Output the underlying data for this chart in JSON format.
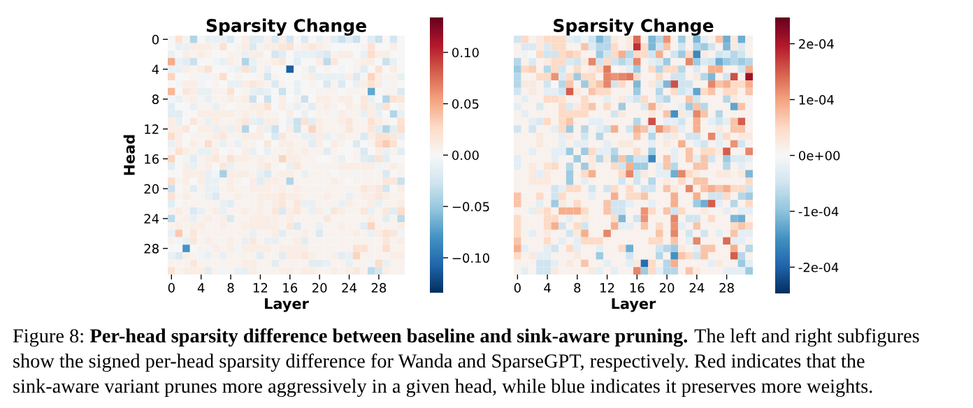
{
  "chart_data": [
    {
      "type": "heatmap",
      "title": "Sparsity Change",
      "xlabel": "Layer",
      "ylabel": "Head",
      "categories": [
        "0",
        null,
        null,
        null,
        "4",
        null,
        null,
        null,
        "8",
        null,
        null,
        null,
        "12",
        null,
        null,
        null,
        "16",
        null,
        null,
        null,
        "20",
        null,
        null,
        null,
        "24",
        null,
        null,
        null,
        "28",
        null,
        null,
        null
      ],
      "y_categories": [
        "0",
        null,
        null,
        null,
        "4",
        null,
        null,
        null,
        "8",
        null,
        null,
        null,
        "12",
        null,
        null,
        null,
        "16",
        null,
        null,
        null,
        "20",
        null,
        null,
        null,
        "24",
        null,
        null,
        null,
        "28",
        null,
        null,
        null
      ],
      "clim": [
        -0.134,
        0.134
      ],
      "cticks": [
        {
          "value": -0.1,
          "label": "−0.10"
        },
        {
          "value": -0.05,
          "label": "−0.05"
        },
        {
          "value": 0,
          "label": "0.00"
        },
        {
          "value": 0.05,
          "label": "0.05"
        },
        {
          "value": 0.1,
          "label": "0.10"
        }
      ],
      "cells": [
        [
          0,
          0.02,
          0.005,
          -0.04,
          0,
          -0.01,
          -0.01,
          -0.01,
          -0.02,
          0,
          0.01,
          -0.015,
          -0.015,
          0.005,
          -0.02,
          0.01,
          -0.025,
          0,
          -0.02,
          0,
          -0.01,
          0.005,
          -0.015,
          -0.03,
          -0.015,
          -0.03,
          0,
          -0.015,
          -0.03,
          0,
          -0.025,
          0
        ],
        [
          0,
          -0.01,
          -0.01,
          0.01,
          0.01,
          0.01,
          0.005,
          0.02,
          0,
          0.005,
          0.01,
          -0.02,
          0.005,
          0.01,
          0.01,
          0.015,
          0.02,
          0.005,
          0.01,
          0.015,
          0.01,
          0.005,
          0,
          0,
          0,
          0,
          0.005,
          0.02,
          0,
          0,
          0.01,
          0
        ],
        [
          -0.01,
          0,
          0.01,
          0.005,
          0.01,
          0.005,
          0,
          0,
          0.005,
          0.005,
          -0.01,
          0.01,
          0.01,
          0,
          -0.025,
          -0.015,
          0,
          -0.01,
          -0.01,
          -0.01,
          -0.015,
          -0.02,
          0.005,
          0.01,
          0.01,
          0,
          -0.01,
          0.025,
          0.01,
          0.01,
          0,
          0
        ],
        [
          0.05,
          -0.01,
          -0.015,
          -0.03,
          0,
          0,
          -0.005,
          -0.01,
          0.01,
          0.005,
          -0.04,
          -0.01,
          0.005,
          0.005,
          0.01,
          0.015,
          0,
          -0.015,
          0,
          0,
          0.01,
          -0.035,
          0.015,
          0,
          0,
          0.005,
          0.01,
          0.01,
          0,
          -0.03,
          -0.01,
          0
        ],
        [
          -0.01,
          -0.01,
          0.01,
          0.005,
          0.01,
          0.02,
          0,
          0,
          -0.005,
          -0.01,
          0.02,
          -0.015,
          0.005,
          -0.01,
          0,
          0,
          -0.11,
          0,
          0.005,
          -0.015,
          0,
          0.005,
          0,
          -0.005,
          0,
          0.005,
          -0.015,
          0,
          0.02,
          0,
          0.01,
          0
        ],
        [
          0.03,
          0,
          0,
          0.005,
          -0.005,
          -0.005,
          0.005,
          0.025,
          0,
          0.005,
          0,
          0,
          0.005,
          -0.025,
          0.005,
          0,
          0,
          0,
          0.005,
          0.01,
          -0.01,
          -0.01,
          -0.01,
          -0.01,
          0.01,
          -0.02,
          0.005,
          0.03,
          0.01,
          0.005,
          0.005,
          -0.01
        ],
        [
          0,
          -0.005,
          0.01,
          0.01,
          -0.005,
          0,
          0.005,
          0,
          -0.01,
          -0.01,
          0.01,
          0.015,
          0.01,
          0.005,
          -0.02,
          0.005,
          0,
          -0.01,
          0,
          0.005,
          0,
          -0.02,
          0.005,
          -0.02,
          0,
          -0.01,
          0.01,
          0.02,
          0.01,
          -0.005,
          0.005,
          0
        ],
        [
          0.045,
          0,
          0.015,
          0.01,
          -0.01,
          -0.01,
          0.005,
          0.005,
          0.02,
          0,
          0.005,
          -0.01,
          -0.015,
          -0.01,
          0,
          -0.03,
          0,
          -0.01,
          0,
          0,
          0.005,
          0.005,
          0.005,
          0,
          0.005,
          0.005,
          0.005,
          -0.07,
          0,
          0.005,
          0.005,
          -0.02
        ],
        [
          -0.005,
          -0.01,
          0.005,
          0.01,
          -0.005,
          -0.01,
          0.005,
          0.005,
          0.01,
          0.005,
          0.01,
          -0.03,
          0,
          -0.03,
          0,
          0.01,
          0,
          0.005,
          -0.03,
          0,
          0.01,
          0.01,
          0.005,
          0.01,
          0.01,
          0,
          0.015,
          -0.01,
          0,
          -0.04,
          0.02,
          0.015
        ],
        [
          -0.015,
          0,
          0,
          -0.01,
          0.005,
          0.005,
          -0.01,
          0.005,
          0,
          0.005,
          0.005,
          0.01,
          0.01,
          0.02,
          0,
          0.01,
          -0.005,
          -0.01,
          0.005,
          -0.015,
          0.005,
          0.01,
          0.005,
          0,
          0.01,
          0.005,
          0.015,
          0.01,
          -0.015,
          0.02,
          0,
          0.005
        ],
        [
          -0.015,
          -0.015,
          0,
          0,
          0.01,
          0.01,
          0.01,
          0.01,
          0.01,
          0.005,
          0.01,
          0.005,
          0.01,
          0.005,
          0.005,
          0,
          0.01,
          0,
          -0.01,
          0,
          0.005,
          0.005,
          -0.005,
          0.01,
          0.005,
          0.005,
          -0.01,
          0.01,
          -0.01,
          0,
          -0.04,
          -0.01
        ],
        [
          0.01,
          -0.01,
          0,
          0.015,
          0.005,
          -0.01,
          0.01,
          0.005,
          0.005,
          0.01,
          0.015,
          -0.01,
          -0.015,
          0.01,
          0.01,
          0,
          -0.01,
          -0.03,
          0.02,
          -0.015,
          0.01,
          0.005,
          0.005,
          0.01,
          0.015,
          0.005,
          0.005,
          0.02,
          0.01,
          0.005,
          0,
          0.02
        ],
        [
          0.01,
          0.01,
          0.015,
          0,
          0.01,
          0.01,
          -0.01,
          0.01,
          -0.01,
          0.01,
          -0.04,
          0,
          0.01,
          -0.01,
          -0.03,
          0,
          0.01,
          -0.03,
          0.005,
          0.03,
          0.01,
          0.005,
          0.005,
          0.005,
          0.015,
          0.005,
          0.005,
          0.015,
          -0.015,
          -0.04,
          -0.015,
          0.025
        ],
        [
          0.025,
          0.01,
          0,
          0.005,
          0.005,
          0.005,
          0.01,
          0.015,
          0.005,
          0.005,
          0.01,
          0.01,
          0.01,
          0,
          -0.02,
          0.015,
          0.005,
          0.005,
          -0.01,
          -0.01,
          0.01,
          -0.01,
          -0.005,
          0.01,
          0.005,
          0.005,
          -0.02,
          0.01,
          0.02,
          0.02,
          0.015,
          -0.01
        ],
        [
          -0.01,
          0.01,
          0,
          0.01,
          0.005,
          0.025,
          0.005,
          -0.01,
          0.005,
          -0.01,
          0.005,
          0.005,
          0,
          0.015,
          0,
          0.01,
          0.01,
          0.005,
          0.005,
          -0.015,
          0.01,
          0,
          0.01,
          0.005,
          0,
          -0.02,
          0,
          0.005,
          0.025,
          0.035,
          0.02,
          0
        ],
        [
          0.005,
          0.02,
          0.01,
          0.005,
          -0.01,
          -0.01,
          0.01,
          0,
          0.005,
          0,
          0.01,
          -0.01,
          0,
          -0.01,
          0.005,
          0.005,
          0.01,
          0.005,
          0.01,
          0.005,
          0.005,
          -0.015,
          0.005,
          0,
          0,
          0.005,
          -0.02,
          0,
          0.01,
          -0.01,
          0.005,
          -0.015
        ],
        [
          0.03,
          0,
          -0.005,
          -0.015,
          0.005,
          0.01,
          0.015,
          0.005,
          0.02,
          0.01,
          0.01,
          0.005,
          0.01,
          0.005,
          0.005,
          0.03,
          0.01,
          0.01,
          0.005,
          0.005,
          0,
          0,
          0.005,
          -0.01,
          0,
          0.005,
          -0.015,
          -0.02,
          0.02,
          -0.015,
          0,
          0
        ],
        [
          -0.015,
          0,
          0.01,
          -0.01,
          0.005,
          0.01,
          0,
          0.015,
          -0.01,
          0.005,
          0.005,
          0.005,
          0.01,
          0.015,
          0.005,
          0,
          -0.01,
          0.015,
          0.005,
          0.005,
          0.005,
          0.005,
          0.005,
          0.01,
          0.01,
          0.01,
          0.01,
          0.01,
          -0.005,
          0.005,
          0.01,
          0.005
        ],
        [
          0,
          0,
          0.01,
          0.01,
          0.01,
          -0.01,
          -0.005,
          -0.045,
          0.01,
          0.01,
          0.01,
          0.005,
          -0.01,
          -0.02,
          0.005,
          0.01,
          0.01,
          0.005,
          -0.01,
          0.005,
          0.005,
          0.005,
          0,
          0.005,
          0.005,
          -0.005,
          0.005,
          0.005,
          0.005,
          -0.02,
          0,
          0.005
        ],
        [
          0.025,
          0.005,
          0.01,
          0,
          0.01,
          -0.01,
          -0.01,
          0.005,
          0.01,
          0.005,
          0,
          0.01,
          -0.015,
          0.01,
          0.01,
          0.005,
          -0.04,
          0.005,
          0.005,
          0.005,
          0.005,
          0.005,
          0.01,
          0.005,
          0,
          0.005,
          0.005,
          0.005,
          0.005,
          0.015,
          0.015,
          -0.03
        ],
        [
          -0.03,
          0,
          0.005,
          -0.015,
          0.005,
          -0.01,
          -0.01,
          0.005,
          0.01,
          0.005,
          0.005,
          0.01,
          0.01,
          0.01,
          0.005,
          0.01,
          0.005,
          0.01,
          0.005,
          0.005,
          0.005,
          0.005,
          0.005,
          0.005,
          0.005,
          0.005,
          0.015,
          0.01,
          0.015,
          -0.025,
          0,
          0.01
        ],
        [
          0.02,
          0.005,
          0.01,
          0.005,
          0.005,
          -0.01,
          -0.02,
          0.005,
          0.005,
          0.01,
          0.005,
          0.005,
          0.01,
          0.01,
          0.01,
          0.015,
          0.01,
          0.01,
          0.005,
          0.005,
          0.005,
          0.01,
          0.005,
          0.005,
          -0.01,
          0.005,
          0.01,
          0.01,
          0.015,
          0.01,
          0.005,
          0.005
        ],
        [
          -0.015,
          0,
          0.005,
          0.005,
          0.005,
          0.005,
          0.005,
          -0.01,
          -0.015,
          0.005,
          0.005,
          0.005,
          0.01,
          0.005,
          0.01,
          0.015,
          0.005,
          0.015,
          -0.01,
          -0.01,
          0.005,
          0.005,
          0.005,
          -0.01,
          0.01,
          0.005,
          0.005,
          0.01,
          -0.01,
          0.005,
          0.005,
          0.01
        ],
        [
          0.005,
          0.01,
          0.005,
          -0.02,
          -0.01,
          0.005,
          0.01,
          -0.01,
          0.005,
          0.005,
          0.01,
          0.005,
          0.01,
          0.005,
          0.015,
          -0.02,
          0.01,
          0.015,
          0.005,
          -0.01,
          0.01,
          -0.005,
          0.015,
          0.01,
          0.005,
          0.005,
          0.015,
          -0.01,
          0.005,
          0.015,
          -0.015,
          0.025
        ],
        [
          -0.035,
          0.005,
          0.01,
          -0.01,
          0.005,
          0.01,
          0.005,
          0.01,
          -0.02,
          0.005,
          0.005,
          0.01,
          0.01,
          0.01,
          0.01,
          0.005,
          0.01,
          0.005,
          0.005,
          0.005,
          0.005,
          0.015,
          0.005,
          0.005,
          0.005,
          0.005,
          0.005,
          0.01,
          0.005,
          -0.015,
          0.005,
          -0.035
        ],
        [
          0.005,
          0.01,
          0.005,
          0.01,
          0.01,
          0.005,
          0.005,
          0.01,
          0.005,
          0.005,
          0.01,
          0.01,
          0.01,
          0.01,
          0.01,
          0.005,
          0.015,
          -0.02,
          0.005,
          0.005,
          -0.01,
          0.005,
          0.005,
          0.01,
          0.005,
          0.005,
          -0.015,
          0.03,
          0.005,
          0.005,
          0.005,
          0.01
        ],
        [
          -0.01,
          0.035,
          0.005,
          0.015,
          0.005,
          0.005,
          0.005,
          0.005,
          0.005,
          0.005,
          0.005,
          -0.01,
          0.005,
          0.005,
          0.01,
          -0.015,
          0.005,
          0.005,
          0.01,
          0.005,
          -0.02,
          0.005,
          0.005,
          0.005,
          0.005,
          0.01,
          0.005,
          -0.01,
          0.01,
          0.02,
          0.015,
          -0.005
        ],
        [
          0.005,
          -0.005,
          -0.01,
          0.015,
          0.005,
          0.01,
          0.005,
          0.005,
          0.01,
          0.005,
          -0.01,
          0.015,
          0.005,
          -0.01,
          -0.01,
          0.005,
          0.005,
          0.01,
          -0.015,
          0.005,
          0.005,
          0.005,
          0.005,
          0.005,
          0.005,
          0.005,
          0.005,
          0.005,
          0.005,
          0.015,
          0.005,
          0.01
        ],
        [
          0,
          0,
          -0.08,
          0,
          0.005,
          -0.005,
          0.01,
          0.005,
          0.01,
          -0.005,
          0.01,
          0.01,
          0.01,
          0.01,
          0.005,
          0.01,
          0.01,
          0.01,
          0.01,
          0.005,
          0.005,
          0.005,
          0.005,
          0.005,
          0.005,
          0.02,
          0.02,
          0.005,
          0.005,
          0.025,
          0.005,
          0.005
        ],
        [
          -0.01,
          -0.02,
          0.01,
          0.005,
          -0.005,
          -0.01,
          0.005,
          -0.01,
          0.005,
          0.005,
          0.005,
          0.005,
          -0.015,
          0.005,
          0.005,
          -0.015,
          0.01,
          0.01,
          0.015,
          0.01,
          0.005,
          0.005,
          0.01,
          -0.015,
          -0.01,
          0.03,
          0.005,
          0.005,
          0.005,
          0.005,
          0.01,
          0.01
        ],
        [
          0.005,
          0.005,
          0.005,
          0.015,
          0.005,
          0.005,
          0.005,
          0.005,
          0.005,
          0.005,
          0.01,
          0.01,
          0.005,
          0.005,
          -0.015,
          0.005,
          0.005,
          0.005,
          0.005,
          -0.015,
          -0.015,
          -0.01,
          0.005,
          0.005,
          -0.01,
          0.005,
          0.005,
          -0.005,
          0.025,
          -0.01,
          0.005,
          0.005
        ],
        [
          0.02,
          0.005,
          0.01,
          0.01,
          0.01,
          -0.015,
          0.005,
          -0.005,
          0.005,
          -0.01,
          -0.01,
          0.01,
          0.005,
          0.005,
          0.005,
          0.01,
          0.01,
          0.005,
          0.01,
          0.01,
          0.005,
          0.005,
          0.01,
          0.005,
          0.01,
          0.015,
          0.005,
          -0.035,
          -0.025,
          0.01,
          0.005,
          0.005
        ]
      ],
      "annotations": [
        "Figure 8:",
        "Per-head sparsity difference between baseline and sink-aware pruning.",
        "The left and right subfigures",
        "show the signed per-head sparsity difference for Wanda and SparseGPT, respectively. Red indicates that the",
        "sink-aware variant prunes more aggressively in a given head, while blue indicates it preserves more weights."
      ]
    },
    {
      "type": "heatmap",
      "title": "Sparsity Change",
      "xlabel": "Layer",
      "tick_labels": "x",
      "categories": [
        "0",
        null,
        null,
        null,
        "4",
        null,
        null,
        null,
        "8",
        null,
        null,
        null,
        "12",
        null,
        null,
        null,
        "16",
        null,
        null,
        null,
        "20",
        null,
        null,
        null,
        "24",
        null,
        null,
        null,
        "28",
        null,
        null,
        null
      ],
      "y_categories": [
        "0",
        null,
        null,
        null,
        "4",
        null,
        null,
        null,
        "8",
        null,
        null,
        null,
        "12",
        null,
        null,
        null,
        "16",
        null,
        null,
        null,
        "20",
        null,
        null,
        null,
        "24",
        null,
        null,
        null,
        "28",
        null,
        null,
        null
      ],
      "clim": [
        -0.000247,
        0.000247
      ],
      "cticks": [
        {
          "value": -0.0002,
          "label": "-2e-04"
        },
        {
          "value": -0.0001,
          "label": "-1e-04"
        },
        {
          "value": 0,
          "label": "0e+00"
        },
        {
          "value": 0.0001,
          "label": "1e-04"
        },
        {
          "value": 0.0002,
          "label": "2e-04"
        }
      ],
      "cells": [
        [
          -5e-05,
          5e-05,
          1e-05,
          2.5e-05,
          5e-05,
          5e-05,
          5e-05,
          -2.5e-05,
          -3.5e-05,
          -1e-05,
          -5e-05,
          -0.00011,
          -7e-05,
          2.5e-05,
          1e-05,
          2.5e-05,
          0.00014,
          1e-05,
          -0.00011,
          -7e-05,
          0.00011,
          1e-05,
          -9e-05,
          1e-05,
          -0.00011,
          -2.5e-05,
          1e-05,
          7e-05,
          -0.00012,
          2.5e-05,
          -0.00012,
          1e-05
        ],
        [
          1e-05,
          -3.5e-05,
          -3.5e-05,
          2.5e-05,
          -3.5e-05,
          5e-05,
          5e-05,
          1e-05,
          1e-05,
          7e-05,
          -3.5e-05,
          -7e-05,
          -7e-05,
          5e-05,
          1e-05,
          2.5e-05,
          0.00018,
          5e-05,
          -0.00011,
          -5e-05,
          7e-05,
          1e-05,
          -5e-05,
          1e-05,
          -7e-05,
          -9e-05,
          -5e-05,
          1e-05,
          -0.00011,
          2.5e-05,
          -3.5e-05,
          1e-05
        ],
        [
          1e-05,
          -1e-05,
          0,
          5e-05,
          -5e-05,
          -5e-05,
          5e-05,
          6e-05,
          5e-05,
          1e-05,
          1e-05,
          -9e-05,
          -5e-05,
          5e-05,
          9e-05,
          -7e-05,
          5e-05,
          5e-05,
          -5e-05,
          9e-05,
          1e-05,
          -5e-05,
          -9e-05,
          5e-05,
          -0.00016,
          2.5e-05,
          1e-05,
          -5e-05,
          -3.5e-05,
          -7e-05,
          -5e-05,
          1e-05
        ],
        [
          -7e-05,
          1e-05,
          -3.5e-05,
          1e-05,
          2.5e-05,
          5e-05,
          5e-05,
          -3.5e-05,
          -5e-05,
          2.5e-05,
          0.00012,
          -5e-05,
          5e-05,
          -5e-05,
          -7e-05,
          -5e-05,
          0.00012,
          1e-05,
          -2.5e-05,
          -3.5e-05,
          -9e-05,
          1e-05,
          1e-05,
          0.00012,
          -9e-05,
          -3.5e-05,
          -5e-05,
          -0.00012,
          -9e-05,
          -7e-05,
          -9e-05,
          -7e-05
        ],
        [
          -9e-05,
          5e-05,
          6e-05,
          1e-05,
          -7e-05,
          5e-05,
          -5e-05,
          1e-05,
          5e-05,
          1e-05,
          2.5e-05,
          5e-05,
          0.00013,
          0,
          1e-05,
          -2.5e-05,
          -9e-05,
          1e-05,
          5e-05,
          -7e-05,
          5e-05,
          5e-05,
          -7e-05,
          1e-05,
          -3.5e-05,
          1e-05,
          9e-05,
          9e-05,
          1e-05,
          1e-05,
          -5e-05,
          9e-05
        ],
        [
          -7e-05,
          1e-05,
          1e-05,
          5e-05,
          5e-05,
          0.00011,
          -3.5e-05,
          5e-05,
          -9e-05,
          5e-05,
          5e-05,
          1e-05,
          0.00012,
          0.00011,
          0.00012,
          0.00013,
          5e-05,
          1e-05,
          1e-05,
          5e-05,
          1e-05,
          -5e-05,
          -5e-05,
          1e-05,
          2.5e-05,
          -7e-05,
          -0.00011,
          1e-05,
          -5e-05,
          0.00016,
          1e-05,
          0.00021
        ],
        [
          -7e-05,
          2.5e-05,
          2.5e-05,
          1e-05,
          -5e-05,
          0,
          -7e-05,
          7e-05,
          1e-05,
          -9e-05,
          5e-05,
          7e-05,
          0.00012,
          -5e-05,
          5e-05,
          1e-05,
          -0.00011,
          1e-05,
          2.5e-05,
          -3.5e-05,
          -0.00011,
          0.00016,
          -5e-05,
          -5e-05,
          1e-05,
          1e-05,
          0.00012,
          7e-05,
          9e-05,
          5e-05,
          5e-05,
          9e-05
        ],
        [
          -5e-05,
          1e-05,
          2.5e-05,
          1e-05,
          -2.5e-05,
          -2.5e-05,
          -5e-05,
          0.00015,
          2.5e-05,
          1e-05,
          7e-05,
          5e-05,
          5e-05,
          1e-05,
          1e-05,
          1e-05,
          -9e-05,
          1e-05,
          1e-05,
          -7e-05,
          1e-05,
          5e-05,
          -5e-05,
          -2.5e-05,
          -0.00013,
          5e-05,
          7e-05,
          1e-05,
          5e-05,
          5e-05,
          1e-05,
          7e-05
        ],
        [
          1e-05,
          -2.5e-05,
          1e-05,
          1e-05,
          5e-05,
          5e-05,
          3.5e-05,
          1e-05,
          1e-05,
          5e-05,
          1e-05,
          1e-05,
          -2.5e-05,
          1e-05,
          2.5e-05,
          -2.5e-05,
          -5e-05,
          5e-05,
          1e-05,
          -5e-05,
          -7e-05,
          1e-05,
          1e-05,
          7e-05,
          -5e-05,
          1e-05,
          1e-05,
          1e-05,
          -7e-05,
          2.5e-05,
          1e-05,
          1e-05
        ],
        [
          -2.5e-05,
          1e-05,
          1e-05,
          -3.5e-05,
          1e-05,
          1e-05,
          5e-05,
          -3.5e-05,
          2.5e-05,
          5e-05,
          7e-05,
          1e-05,
          5e-05,
          1e-05,
          -9e-05,
          1e-05,
          1e-05,
          -3.5e-05,
          9e-05,
          2.5e-05,
          1e-05,
          1e-05,
          -2.5e-05,
          -9e-05,
          7e-05,
          -7e-05,
          1e-05,
          1e-05,
          1e-05,
          -0.00013,
          7e-05,
          1e-05
        ],
        [
          1e-05,
          -2.5e-05,
          1e-05,
          1e-05,
          1e-05,
          1e-05,
          5e-05,
          5e-05,
          5e-05,
          5e-05,
          1e-05,
          1e-05,
          1e-05,
          -5e-05,
          2.5e-05,
          1e-05,
          1e-05,
          1e-05,
          2.5e-05,
          1e-05,
          7e-05,
          -0.00015,
          2.5e-05,
          -2.5e-05,
          0.00012,
          7e-05,
          1e-05,
          -7e-05,
          1e-05,
          1e-05,
          1e-05,
          1e-05
        ],
        [
          1e-05,
          1e-05,
          -2.5e-05,
          -3.5e-05,
          5e-05,
          1e-05,
          5e-05,
          7e-05,
          1e-05,
          1e-05,
          -2.5e-05,
          -2.5e-05,
          1e-05,
          1e-05,
          1e-05,
          1e-05,
          -7e-05,
          1e-05,
          0.00016,
          1e-05,
          -2.5e-05,
          -2.5e-05,
          -5e-05,
          1e-05,
          9e-05,
          1e-05,
          -2.5e-05,
          -5e-05,
          -2.5e-05,
          7e-05,
          0.00015,
          1e-05
        ],
        [
          -5e-05,
          1e-05,
          -5e-05,
          1e-05,
          1e-05,
          -2.5e-05,
          5e-05,
          -9e-05,
          1e-05,
          -7e-05,
          1e-05,
          -2.5e-05,
          -5e-05,
          9e-05,
          1e-05,
          -5e-05,
          9e-05,
          7e-05,
          -2.5e-05,
          0.00011,
          7e-05,
          5e-05,
          -2.5e-05,
          1e-05,
          9e-05,
          1e-05,
          1e-05,
          2.5e-05,
          1e-05,
          7e-05,
          7e-05,
          1e-05
        ],
        [
          1e-05,
          1e-05,
          1e-05,
          2.5e-05,
          1e-05,
          1e-05,
          -2.5e-05,
          2.5e-05,
          1e-05,
          -5e-05,
          1e-05,
          -7e-05,
          1e-05,
          1e-05,
          1e-05,
          1e-05,
          7e-05,
          1e-05,
          -7e-05,
          1e-05,
          -2.5e-05,
          2.5e-05,
          1e-05,
          -5e-05,
          -5e-05,
          1e-05,
          0.00012,
          -2.5e-05,
          5e-05,
          1e-05,
          2.5e-05,
          2.5e-05
        ],
        [
          1e-05,
          1e-05,
          1e-05,
          2.5e-05,
          1e-05,
          1e-05,
          -2.5e-05,
          1e-05,
          -2.5e-05,
          -2.5e-05,
          1e-05,
          1e-05,
          -2.5e-05,
          1e-05,
          2.5e-05,
          2.5e-05,
          1e-05,
          1e-05,
          -2.5e-05,
          1e-05,
          2.5e-05,
          1e-05,
          9e-05,
          1e-05,
          -2.5e-05,
          -5e-05,
          1e-05,
          -2.5e-05,
          1e-05,
          0.00011,
          -5e-05,
          1e-05
        ],
        [
          1e-05,
          1e-05,
          -2.5e-05,
          1e-05,
          1e-05,
          -2.5e-05,
          -2.5e-05,
          -9e-05,
          1e-05,
          -9e-05,
          5e-05,
          -2.5e-05,
          -2.5e-05,
          -7e-05,
          1e-05,
          1e-05,
          5e-05,
          1e-05,
          -9e-05,
          1e-05,
          1e-05,
          -2.5e-05,
          1e-05,
          7e-05,
          1e-05,
          5e-05,
          5e-05,
          2.5e-05,
          0.00015,
          1e-05,
          1e-05,
          0.00012
        ],
        [
          -2.5e-05,
          1e-05,
          1e-05,
          1e-05,
          1e-05,
          -2.5e-05,
          1e-05,
          1e-05,
          -9e-05,
          1e-05,
          2.5e-05,
          -7e-05,
          2.5e-05,
          -9e-05,
          7e-05,
          -9e-05,
          -5e-05,
          -5e-05,
          -0.00016,
          1e-05,
          7e-05,
          -2.5e-05,
          1e-05,
          7e-05,
          -2.5e-05,
          7e-05,
          -5e-05,
          1e-05,
          -9e-05,
          -3.5e-05,
          -3.5e-05,
          -2.5e-05
        ],
        [
          -2.5e-05,
          1e-05,
          2.5e-05,
          1e-05,
          3.5e-05,
          5e-05,
          1e-05,
          -7e-05,
          1e-05,
          -9e-05,
          2.5e-05,
          1e-05,
          1e-05,
          5e-05,
          -5e-05,
          9e-05,
          -9e-05,
          -9e-05,
          1e-05,
          -2.5e-05,
          7e-05,
          -7e-05,
          1e-05,
          1e-05,
          7e-05,
          7e-05,
          1e-05,
          1e-05,
          -7e-05,
          1e-05,
          -2.5e-05,
          1e-05
        ],
        [
          1e-05,
          1e-05,
          2.5e-05,
          -2.5e-05,
          2.5e-05,
          1e-05,
          1e-05,
          -9e-05,
          1e-05,
          5e-05,
          9e-05,
          1e-05,
          1e-05,
          1e-05,
          5e-05,
          0.00012,
          -5e-05,
          2.5e-05,
          1e-05,
          -2.5e-05,
          -2.5e-05,
          -0.00012,
          0.00012,
          5e-05,
          2.5e-05,
          1e-05,
          1e-05,
          2.5e-05,
          2.5e-05,
          1e-05,
          2.5e-05,
          -0.00011
        ],
        [
          1e-05,
          1e-05,
          2.5e-05,
          2.5e-05,
          2.5e-05,
          1e-05,
          1e-05,
          -9e-05,
          1e-05,
          -2.5e-05,
          1e-05,
          1e-05,
          1e-05,
          1e-05,
          -5e-05,
          1e-05,
          -5e-05,
          1e-05,
          -7e-05,
          1e-05,
          2.5e-05,
          1e-05,
          5e-05,
          1e-05,
          7e-05,
          7e-05,
          1e-05,
          1e-05,
          1e-05,
          1e-05,
          1e-05,
          5e-05
        ],
        [
          1e-05,
          1e-05,
          1e-05,
          1e-05,
          1e-05,
          -5e-05,
          -2.5e-05,
          5e-05,
          5e-05,
          1e-05,
          -5e-05,
          1e-05,
          -5e-05,
          5e-05,
          1e-05,
          5e-05,
          1e-05,
          -5e-05,
          -5e-05,
          1e-05,
          7e-05,
          2.5e-05,
          1e-05,
          0.00012,
          1e-05,
          7e-05,
          9e-05,
          7e-05,
          9e-05,
          5e-05,
          5e-05,
          -5e-05
        ],
        [
          7e-05,
          1e-05,
          1e-05,
          5e-05,
          1e-05,
          -5e-05,
          5e-05,
          1e-05,
          1e-05,
          1e-05,
          -2.5e-05,
          1e-05,
          1e-05,
          9e-05,
          1e-05,
          5e-05,
          5e-05,
          7e-05,
          1e-05,
          1e-05,
          1e-05,
          9e-05,
          1e-05,
          1e-05,
          9e-05,
          1e-05,
          -5e-05,
          -5e-05,
          5e-05,
          1e-05,
          -7e-05,
          -9e-05
        ],
        [
          7e-05,
          1e-05,
          1e-05,
          -2.5e-05,
          1e-05,
          -9e-05,
          2.5e-05,
          1e-05,
          5e-05,
          1e-05,
          1e-05,
          1e-05,
          7e-05,
          -5e-05,
          -5e-05,
          -2.5e-05,
          1e-05,
          1e-05,
          -2.5e-05,
          1e-05,
          1e-05,
          9e-05,
          1e-05,
          1e-05,
          -9e-05,
          -0.00012,
          0.00015,
          -2.5e-05,
          1e-05,
          -7e-05,
          1e-05,
          5e-05
        ],
        [
          1e-05,
          1e-05,
          -2.5e-05,
          2.5e-05,
          5e-05,
          1e-05,
          9e-05,
          9e-05,
          9e-05,
          5e-05,
          1e-05,
          1e-05,
          7e-05,
          -5e-05,
          -5e-05,
          1e-05,
          1e-05,
          0.00011,
          5e-05,
          1e-05,
          7e-05,
          -5e-05,
          5e-05,
          1e-05,
          1e-05,
          2.5e-05,
          1e-05,
          1e-05,
          -2.5e-05,
          1e-05,
          -2.5e-05,
          -2.5e-05
        ],
        [
          5e-05,
          1e-05,
          1e-05,
          1e-05,
          5e-05,
          5e-05,
          1e-05,
          -2.5e-05,
          1e-05,
          2.5e-05,
          1e-05,
          1e-05,
          1e-05,
          5e-05,
          -0.00011,
          1e-05,
          -5e-05,
          0.00011,
          1e-05,
          1e-05,
          1e-05,
          0.00012,
          1e-05,
          -5e-05,
          -5e-05,
          1e-05,
          5e-05,
          1e-05,
          1e-05,
          -0.00011,
          -0.00012,
          1e-05
        ],
        [
          5e-05,
          1e-05,
          1e-05,
          1e-05,
          5e-05,
          9e-05,
          -5e-05,
          1e-05,
          5e-05,
          -5e-05,
          1e-05,
          1e-05,
          1e-05,
          9e-05,
          -2.5e-05,
          -2.5e-05,
          1e-05,
          7e-05,
          1e-05,
          5e-05,
          1e-05,
          0.00011,
          -2.5e-05,
          1e-05,
          7e-05,
          1e-05,
          1e-05,
          1e-05,
          1e-05,
          5e-05,
          7e-05,
          5e-05
        ],
        [
          5e-05,
          1e-05,
          -2.5e-05,
          1e-05,
          2.5e-05,
          1e-05,
          1e-05,
          -5e-05,
          2.5e-05,
          9e-05,
          1e-05,
          1e-05,
          0.00012,
          1e-05,
          1e-05,
          1e-05,
          1e-05,
          1e-05,
          1e-05,
          7e-05,
          1e-05,
          0.00012,
          1e-05,
          -5e-05,
          1e-05,
          -5e-05,
          1e-05,
          -2.5e-05,
          1e-05,
          7e-05,
          -2.5e-05,
          -2.5e-05
        ],
        [
          7e-05,
          1e-05,
          1e-05,
          1e-05,
          5e-05,
          1e-05,
          -2.5e-05,
          1e-05,
          -2.5e-05,
          5e-05,
          5e-05,
          5e-05,
          1e-05,
          1e-05,
          1e-05,
          1e-05,
          1e-05,
          1e-05,
          5e-05,
          5e-05,
          1e-05,
          7e-05,
          1e-05,
          -2.5e-05,
          0.00012,
          1e-05,
          1e-05,
          1e-05,
          0.00014,
          -2.5e-05,
          -2.5e-05,
          1e-05
        ],
        [
          9e-05,
          -2.5e-05,
          1e-05,
          1e-05,
          -2.5e-05,
          -5e-05,
          1e-05,
          5e-05,
          -2.5e-05,
          1e-05,
          1e-05,
          -2.5e-05,
          1e-05,
          1e-05,
          5e-05,
          -0.00012,
          1e-05,
          1e-05,
          1e-05,
          -5e-05,
          -7e-05,
          -9e-05,
          2.5e-05,
          1e-05,
          -2.5e-05,
          7e-05,
          7e-05,
          1e-05,
          1e-05,
          9e-05,
          1e-05,
          -7e-05
        ],
        [
          5e-05,
          1e-05,
          2.5e-05,
          -2.5e-05,
          -2.5e-05,
          1e-05,
          1e-05,
          1e-05,
          2.5e-05,
          1e-05,
          1e-05,
          -9e-05,
          1e-05,
          1e-05,
          1e-05,
          -5e-05,
          1e-05,
          1e-05,
          1e-05,
          -7e-05,
          1e-05,
          -0.00015,
          7e-05,
          5e-05,
          -5e-05,
          7e-05,
          1e-05,
          1e-05,
          1e-05,
          0.00015,
          -7e-05,
          1e-05
        ],
        [
          1e-05,
          1e-05,
          1e-05,
          -5e-05,
          -5e-05,
          -2.5e-05,
          1e-05,
          2.5e-05,
          1e-05,
          7e-05,
          1e-05,
          1e-05,
          -2.5e-05,
          1e-05,
          1e-05,
          -2.5e-05,
          2.5e-05,
          -0.00019,
          5e-05,
          1e-05,
          -7e-05,
          9e-05,
          1e-05,
          1e-05,
          1e-05,
          1e-05,
          -2.5e-05,
          2.5e-05,
          1e-05,
          1e-05,
          -9e-05,
          -2.5e-05
        ],
        [
          1e-05,
          -2.5e-05,
          1e-05,
          -5e-05,
          -5e-05,
          2.5e-05,
          1e-05,
          1e-05,
          1e-05,
          1e-05,
          2.5e-05,
          -2.5e-05,
          1e-05,
          -2.5e-05,
          1e-05,
          1e-05,
          0.00012,
          -9e-05,
          5e-05,
          -2.5e-05,
          -7e-05,
          -7e-05,
          1e-05,
          7e-05,
          2.5e-05,
          1e-05,
          1e-05,
          1e-05,
          -2.5e-05,
          -2.5e-05,
          -2.5e-05,
          -9e-05
        ]
      ]
    }
  ]
}
